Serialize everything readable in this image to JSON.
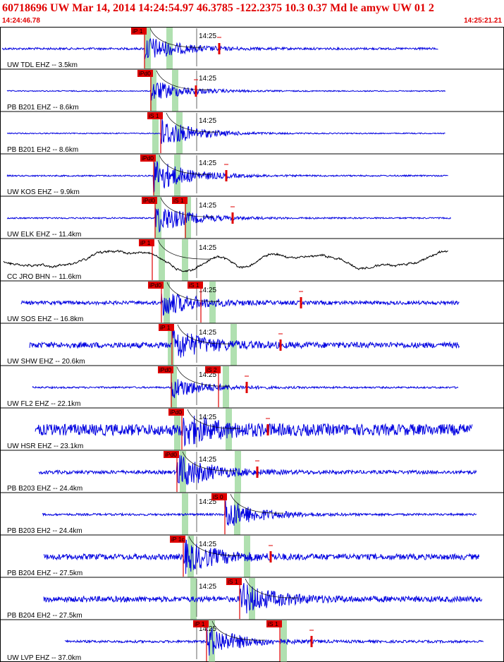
{
  "header": {
    "title": "60718696 UW Mar 14, 2014 14:24:54.97    46.3785 -122.2375 10.3 0.37 Md le amyw UW 01    2",
    "start_time": "14:24:46.78",
    "end_time": "14:25:21.21"
  },
  "minute_label": "14:25",
  "colors": {
    "trace": "#0000e0",
    "accel_trace": "#000000",
    "pick": "#e00000",
    "band": "#b0e0b0",
    "header": "#e00000"
  },
  "traces": [
    {
      "label": "UW TDL EHZ -- 3.5km",
      "color_key": "trace",
      "picks": [
        "iP 1"
      ],
      "amp": 12,
      "noise": 0.6
    },
    {
      "label": "PB B201 EHZ -- 8.6km",
      "color_key": "trace",
      "picks": [
        "iPd0"
      ],
      "amp": 10,
      "noise": 0.3
    },
    {
      "label": "PB B201 EH2 -- 8.6km",
      "color_key": "trace",
      "picks": [
        "iS 1"
      ],
      "amp": 14,
      "noise": 0.3
    },
    {
      "label": "UW KOS EHZ -- 9.9km",
      "color_key": "trace",
      "picks": [
        "iPd0"
      ],
      "amp": 16,
      "noise": 0.4
    },
    {
      "label": "UW ELK EHZ -- 11.4km",
      "color_key": "trace",
      "picks": [
        "iPd0",
        "iS 1"
      ],
      "amp": 14,
      "noise": 0.4
    },
    {
      "label": "CC JRO BHN -- 11.6km",
      "color_key": "accel_trace",
      "picks": [
        "iP 1"
      ],
      "amp": 8,
      "noise": 1.0
    },
    {
      "label": "UW SOS EHZ -- 16.8km",
      "color_key": "trace",
      "picks": [
        "iPd0",
        "iS 1"
      ],
      "amp": 12,
      "noise": 1.0
    },
    {
      "label": "UW SHW EHZ -- 20.6km",
      "color_key": "trace",
      "picks": [
        "iP 1"
      ],
      "amp": 14,
      "noise": 1.6
    },
    {
      "label": "UW FL2 EHZ -- 22.1km",
      "color_key": "trace",
      "picks": [
        "iPd0",
        "iS 2"
      ],
      "amp": 10,
      "noise": 0.5
    },
    {
      "label": "UW HSR EHZ -- 23.1km",
      "color_key": "trace",
      "picks": [
        "iPd0"
      ],
      "amp": 12,
      "noise": 3.2
    },
    {
      "label": "PB B203 EHZ -- 24.4km",
      "color_key": "trace",
      "picks": [
        "iPd0"
      ],
      "amp": 16,
      "noise": 1.0
    },
    {
      "label": "PB B203 EH2 -- 24.4km",
      "color_key": "trace",
      "picks": [
        "iS 0"
      ],
      "amp": 14,
      "noise": 0.6
    },
    {
      "label": "PB B204 EHZ -- 27.5km",
      "color_key": "trace",
      "picks": [
        "iP 1c"
      ],
      "amp": 14,
      "noise": 1.6
    },
    {
      "label": "PB B204 EH2 -- 27.5km",
      "color_key": "trace",
      "picks": [
        "iS 1"
      ],
      "amp": 14,
      "noise": 1.6
    },
    {
      "label": "UW LVP EHZ -- 37.0km",
      "color_key": "trace",
      "picks": [
        "iP 1",
        "iS 1"
      ],
      "amp": 14,
      "noise": 0.7
    }
  ]
}
